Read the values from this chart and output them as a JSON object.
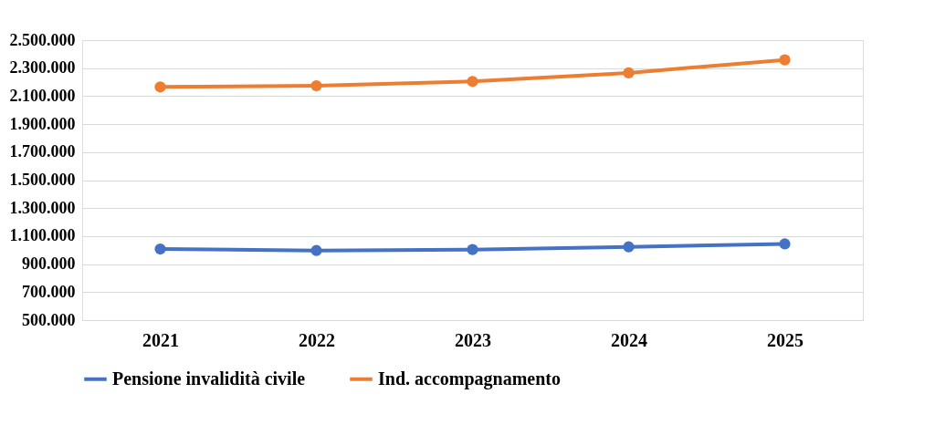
{
  "chart_data": {
    "type": "line",
    "categories": [
      "2021",
      "2022",
      "2023",
      "2024",
      "2025"
    ],
    "series": [
      {
        "name": "Pensione invalidità civile",
        "color": "#4472c4",
        "values": [
          1008000,
          997000,
          1004000,
          1023000,
          1044000
        ]
      },
      {
        "name": "Ind. accompagnamento",
        "color": "#ed7d31",
        "values": [
          2166000,
          2174000,
          2205000,
          2266000,
          2359000
        ]
      }
    ],
    "ylim": [
      500000,
      2500000
    ],
    "yticks": [
      {
        "value": 500000,
        "label": "500.000"
      },
      {
        "value": 700000,
        "label": "700.000"
      },
      {
        "value": 900000,
        "label": "900.000"
      },
      {
        "value": 1100000,
        "label": "1.100.000"
      },
      {
        "value": 1300000,
        "label": "1.300.000"
      },
      {
        "value": 1500000,
        "label": "1.500.000"
      },
      {
        "value": 1700000,
        "label": "1.700.000"
      },
      {
        "value": 1900000,
        "label": "1.900.000"
      },
      {
        "value": 2100000,
        "label": "2.100.000"
      },
      {
        "value": 2300000,
        "label": "2.300.000"
      },
      {
        "value": 2500000,
        "label": "2.500.000"
      }
    ],
    "grid": "y",
    "legend": "bottom",
    "marker": "circle",
    "line_style": "solid"
  }
}
